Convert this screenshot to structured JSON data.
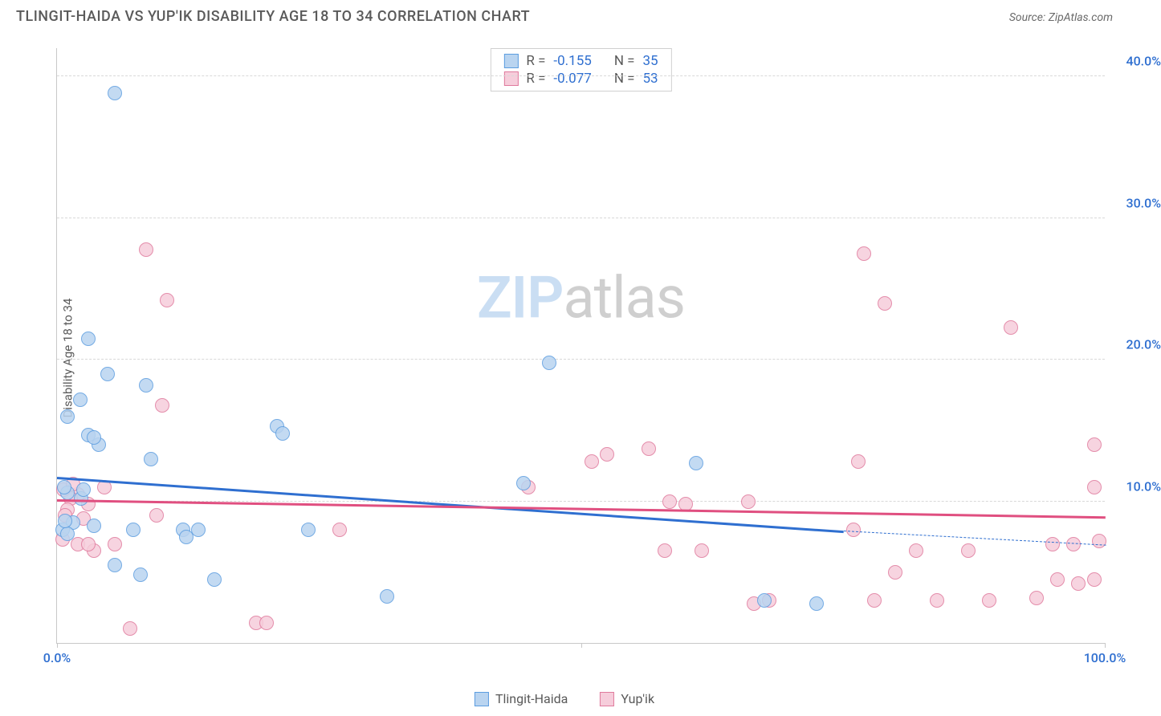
{
  "header": {
    "title": "TLINGIT-HAIDA VS YUP'IK DISABILITY AGE 18 TO 34 CORRELATION CHART",
    "source": "Source: ZipAtlas.com"
  },
  "chart": {
    "type": "scatter",
    "ylabel": "Disability Age 18 to 34",
    "xlim": [
      0,
      100
    ],
    "ylim": [
      0,
      42
    ],
    "yticks": [
      {
        "val": 10,
        "label": "10.0%"
      },
      {
        "val": 20,
        "label": "20.0%"
      },
      {
        "val": 30,
        "label": "30.0%"
      },
      {
        "val": 40,
        "label": "40.0%"
      }
    ],
    "xticks_minor": [
      0,
      50,
      100
    ],
    "xticks_labeled": [
      {
        "val": 0,
        "label": "0.0%"
      },
      {
        "val": 100,
        "label": "100.0%"
      }
    ],
    "background_color": "#ffffff",
    "grid_color": "#d8d8d8",
    "axis_color": "#c8c8c8",
    "tick_label_color": "#2f6fd0",
    "point_radius": 9,
    "point_border_width": 1.5,
    "series": {
      "a": {
        "name": "Tlingit-Haida",
        "fill": "#b9d4f0",
        "stroke": "#5c9de0",
        "R_label": "R =",
        "R": "-0.155",
        "N_label": "N =",
        "N": "35",
        "trend": {
          "x1": 0,
          "y1": 11.8,
          "x2": 75,
          "y2": 8.0,
          "ext_x2": 100,
          "ext_y2": 7.0,
          "color": "#2f6fd0",
          "width": 2.5
        },
        "points": [
          [
            5.5,
            38.8
          ],
          [
            3.0,
            21.5
          ],
          [
            4.8,
            19.0
          ],
          [
            2.2,
            17.2
          ],
          [
            1.0,
            16.0
          ],
          [
            4.0,
            14.0
          ],
          [
            3.0,
            14.7
          ],
          [
            9.0,
            13.0
          ],
          [
            21.0,
            15.3
          ],
          [
            21.5,
            14.8
          ],
          [
            44.5,
            11.3
          ],
          [
            47.0,
            19.8
          ],
          [
            61.0,
            12.7
          ],
          [
            1.0,
            10.6
          ],
          [
            0.7,
            11.0
          ],
          [
            2.3,
            10.2
          ],
          [
            1.5,
            8.5
          ],
          [
            3.5,
            8.3
          ],
          [
            0.5,
            8.0
          ],
          [
            1.0,
            7.7
          ],
          [
            7.3,
            8.0
          ],
          [
            5.5,
            5.5
          ],
          [
            8.0,
            4.8
          ],
          [
            12.0,
            8.0
          ],
          [
            12.3,
            7.5
          ],
          [
            13.5,
            8.0
          ],
          [
            15.0,
            4.5
          ],
          [
            24.0,
            8.0
          ],
          [
            31.5,
            3.3
          ],
          [
            67.5,
            3.0
          ],
          [
            72.5,
            2.8
          ],
          [
            0.8,
            8.6
          ],
          [
            2.5,
            10.8
          ],
          [
            3.5,
            14.5
          ],
          [
            8.5,
            18.2
          ]
        ]
      },
      "b": {
        "name": "Yup'ik",
        "fill": "#f6cddb",
        "stroke": "#e07a9d",
        "R_label": "R =",
        "R": "-0.077",
        "N_label": "N =",
        "N": "53",
        "trend": {
          "x1": 0,
          "y1": 10.2,
          "x2": 100,
          "y2": 9.0,
          "color": "#e04f80",
          "width": 2.5
        },
        "points": [
          [
            8.5,
            27.8
          ],
          [
            10.5,
            24.2
          ],
          [
            10.0,
            16.8
          ],
          [
            77.0,
            27.5
          ],
          [
            79.0,
            24.0
          ],
          [
            91.0,
            22.3
          ],
          [
            99.0,
            14.0
          ],
          [
            99.0,
            11.0
          ],
          [
            51.0,
            12.8
          ],
          [
            52.5,
            13.3
          ],
          [
            56.5,
            13.7
          ],
          [
            58.5,
            10.0
          ],
          [
            58.0,
            6.5
          ],
          [
            60.0,
            9.8
          ],
          [
            61.5,
            6.5
          ],
          [
            66.0,
            10.0
          ],
          [
            66.5,
            2.8
          ],
          [
            68.0,
            3.0
          ],
          [
            76.5,
            12.8
          ],
          [
            76.0,
            8.0
          ],
          [
            78.0,
            3.0
          ],
          [
            80.0,
            5.0
          ],
          [
            82.0,
            6.5
          ],
          [
            84.0,
            3.0
          ],
          [
            87.0,
            6.5
          ],
          [
            89.0,
            3.0
          ],
          [
            93.5,
            3.2
          ],
          [
            95.0,
            7.0
          ],
          [
            95.5,
            4.5
          ],
          [
            97.0,
            7.0
          ],
          [
            97.5,
            4.2
          ],
          [
            27.0,
            8.0
          ],
          [
            7.0,
            1.0
          ],
          [
            19.0,
            1.4
          ],
          [
            20.0,
            1.4
          ],
          [
            3.5,
            6.5
          ],
          [
            5.5,
            7.0
          ],
          [
            9.5,
            9.0
          ],
          [
            2.0,
            10.5
          ],
          [
            3.0,
            9.8
          ],
          [
            1.3,
            10.2
          ],
          [
            1.0,
            9.4
          ],
          [
            2.5,
            8.8
          ],
          [
            0.5,
            7.3
          ],
          [
            0.6,
            10.8
          ],
          [
            0.8,
            9.0
          ],
          [
            1.5,
            11.2
          ],
          [
            2.0,
            7.0
          ],
          [
            3.0,
            7.0
          ],
          [
            45.0,
            11.0
          ],
          [
            4.5,
            11.0
          ],
          [
            99.5,
            7.2
          ],
          [
            99.0,
            4.5
          ]
        ]
      }
    },
    "watermark": {
      "text_a": "ZIP",
      "text_b": "atlas",
      "color_a": "#b9d4f0",
      "color_b": "#bfbfbf",
      "opacity": 0.75
    }
  },
  "legend_bottom": {
    "items": [
      {
        "key": "a",
        "label": "Tlingit-Haida"
      },
      {
        "key": "b",
        "label": "Yup'ik"
      }
    ]
  }
}
